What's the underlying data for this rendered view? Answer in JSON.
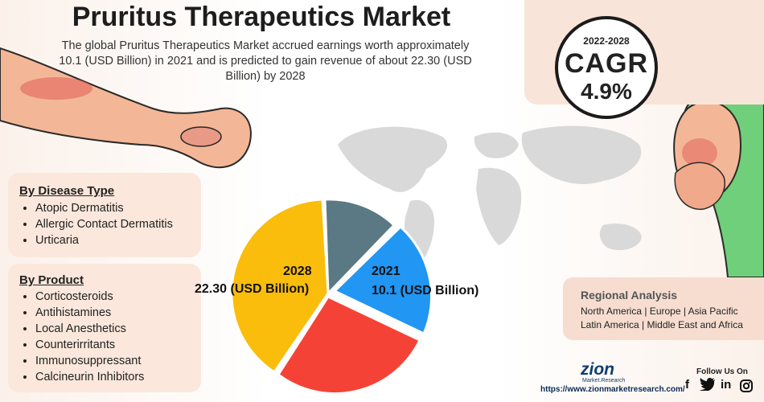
{
  "header": {
    "title": "Pruritus Therapeutics Market",
    "subtitle": "The global Pruritus Therapeutics Market accrued earnings worth approximately 10.1 (USD Billion) in 2021 and is predicted to gain revenue of about 22.30 (USD Billion) by 2028"
  },
  "cagr": {
    "years": "2022-2028",
    "label": "CAGR",
    "value": "4.9%"
  },
  "disease_type": {
    "title": "By Disease Type",
    "items": [
      "Atopic Dermatitis",
      "Allergic Contact Dermatitis",
      "Urticaria"
    ]
  },
  "product": {
    "title": "By Product",
    "items": [
      "Corticosteroids",
      "Antihistamines",
      "Local Anesthetics",
      "Counterirritants",
      "Immunosuppressant",
      "Calcineurin Inhibitors"
    ]
  },
  "pie": {
    "label_2028_year": "2028",
    "label_2028_value": "22.30 (USD Billion)",
    "label_2021_year": "2021",
    "label_2021_value": "10.1 (USD Billion)",
    "colors": {
      "blue": "#2196f3",
      "red": "#f44336",
      "yellow": "#fbbd0b",
      "slate": "#5b7885"
    }
  },
  "regional": {
    "title": "Regional Analysis",
    "line1": "North America | Europe | Asia Pacific",
    "line2": "Latin America | Middle East and Africa"
  },
  "footer": {
    "logo_word": "zion",
    "logo_sub": "Market.Research",
    "website": "https://www.zionmarketresearch.com/",
    "follow": "Follow Us On",
    "facebook": "f",
    "linkedin": "in"
  }
}
